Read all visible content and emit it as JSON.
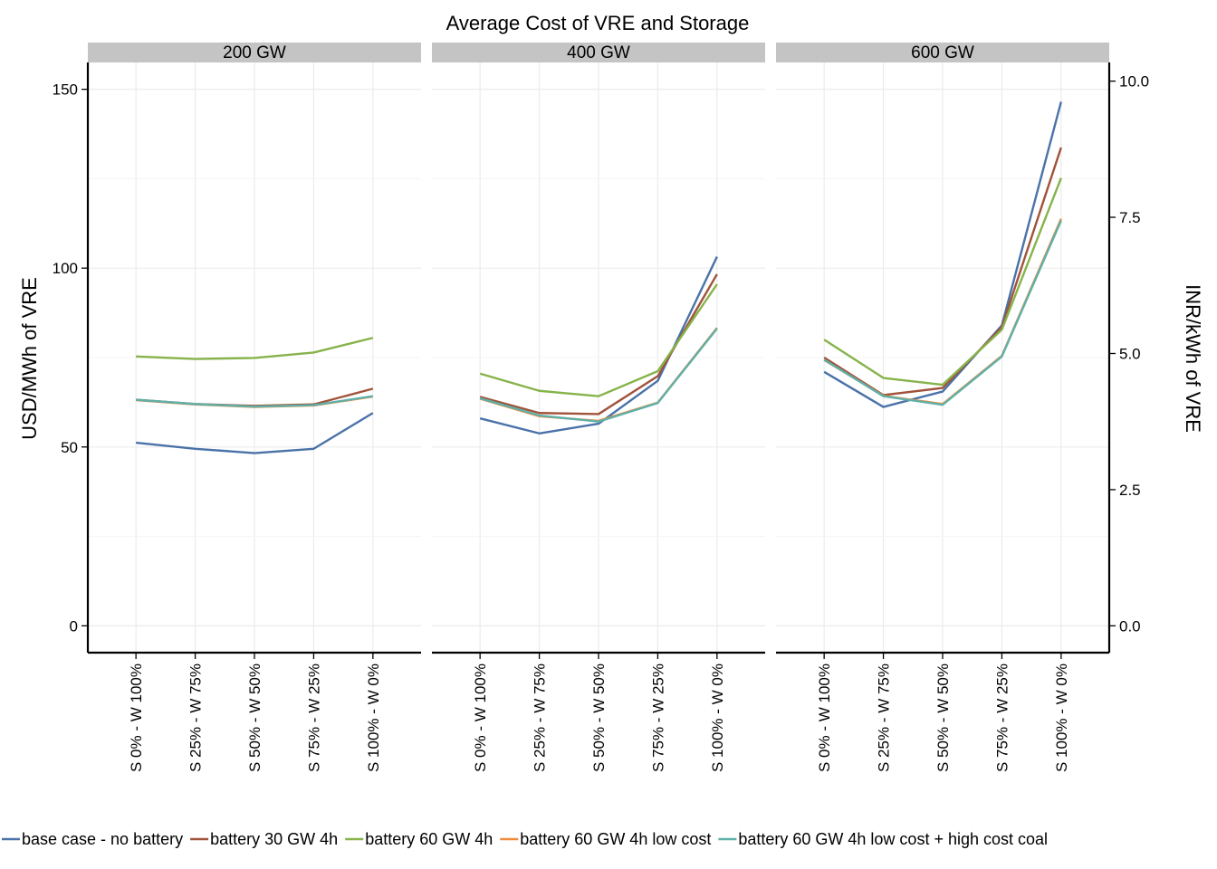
{
  "chart_data": {
    "type": "line",
    "title": "Average Cost of VRE and Storage",
    "ylabel": "USD/MWh of VRE",
    "ylabel_right": "INR/kWh of VRE",
    "ylim": [
      -7.5,
      157.5
    ],
    "yticks": [
      0,
      50,
      100,
      150
    ],
    "yticks_right": [
      "0.0",
      "2.5",
      "5.0",
      "7.5",
      "10.0"
    ],
    "inr_per_usd_mwh_tick_spacing": 2.5,
    "grid": true,
    "legend_position": "bottom",
    "categories": [
      "S 0% - W 100%",
      "S 25% - W 75%",
      "S 50% - W 50%",
      "S 75% - W 25%",
      "S 100% - W 0%"
    ],
    "series_meta": [
      {
        "name": "base case - no battery",
        "color": "#4a72a8"
      },
      {
        "name": "battery 30 GW 4h",
        "color": "#a0533a"
      },
      {
        "name": "battery 60 GW 4h",
        "color": "#86b34a"
      },
      {
        "name": "battery 60 GW 4h low cost",
        "color": "#ef8c3c"
      },
      {
        "name": "battery 60 GW 4h low cost + high cost coal",
        "color": "#5fb0a8"
      }
    ],
    "panels": [
      {
        "label": "200 GW",
        "series": [
          {
            "name": "base case - no battery",
            "values": [
              51.2,
              49.5,
              48.3,
              49.5,
              59.5
            ]
          },
          {
            "name": "battery 30 GW 4h",
            "values": [
              63.2,
              62.0,
              61.5,
              61.9,
              66.3
            ]
          },
          {
            "name": "battery 60 GW 4h",
            "values": [
              75.3,
              74.6,
              74.9,
              76.4,
              80.5
            ]
          },
          {
            "name": "battery 60 GW 4h low cost",
            "values": [
              63.1,
              61.9,
              61.2,
              61.6,
              64.1
            ]
          },
          {
            "name": "battery 60 GW 4h low cost + high cost coal",
            "values": [
              63.2,
              62.0,
              61.3,
              61.7,
              64.2
            ]
          }
        ]
      },
      {
        "label": "400 GW",
        "series": [
          {
            "name": "base case - no battery",
            "values": [
              58.0,
              53.8,
              56.5,
              68.5,
              103.2
            ]
          },
          {
            "name": "battery 30 GW 4h",
            "values": [
              64.0,
              59.5,
              59.2,
              69.8,
              98.3
            ]
          },
          {
            "name": "battery 60 GW 4h",
            "values": [
              70.5,
              65.7,
              64.2,
              71.2,
              95.5
            ]
          },
          {
            "name": "battery 60 GW 4h low cost",
            "values": [
              63.5,
              58.6,
              57.3,
              62.4,
              83.3
            ]
          },
          {
            "name": "battery 60 GW 4h low cost + high cost coal",
            "values": [
              63.6,
              58.8,
              57.1,
              62.3,
              83.1
            ]
          }
        ]
      },
      {
        "label": "600 GW",
        "series": [
          {
            "name": "base case - no battery",
            "values": [
              71.0,
              61.2,
              65.5,
              84.0,
              146.5
            ]
          },
          {
            "name": "battery 30 GW 4h",
            "values": [
              75.0,
              64.5,
              66.5,
              83.5,
              133.7
            ]
          },
          {
            "name": "battery 60 GW 4h",
            "values": [
              80.0,
              69.3,
              67.4,
              82.8,
              125.2
            ]
          },
          {
            "name": "battery 60 GW 4h low cost",
            "values": [
              74.3,
              64.3,
              62.0,
              75.5,
              113.8
            ]
          },
          {
            "name": "battery 60 GW 4h low cost + high cost coal",
            "values": [
              74.4,
              64.2,
              61.8,
              75.3,
              113.3
            ]
          }
        ]
      }
    ]
  }
}
